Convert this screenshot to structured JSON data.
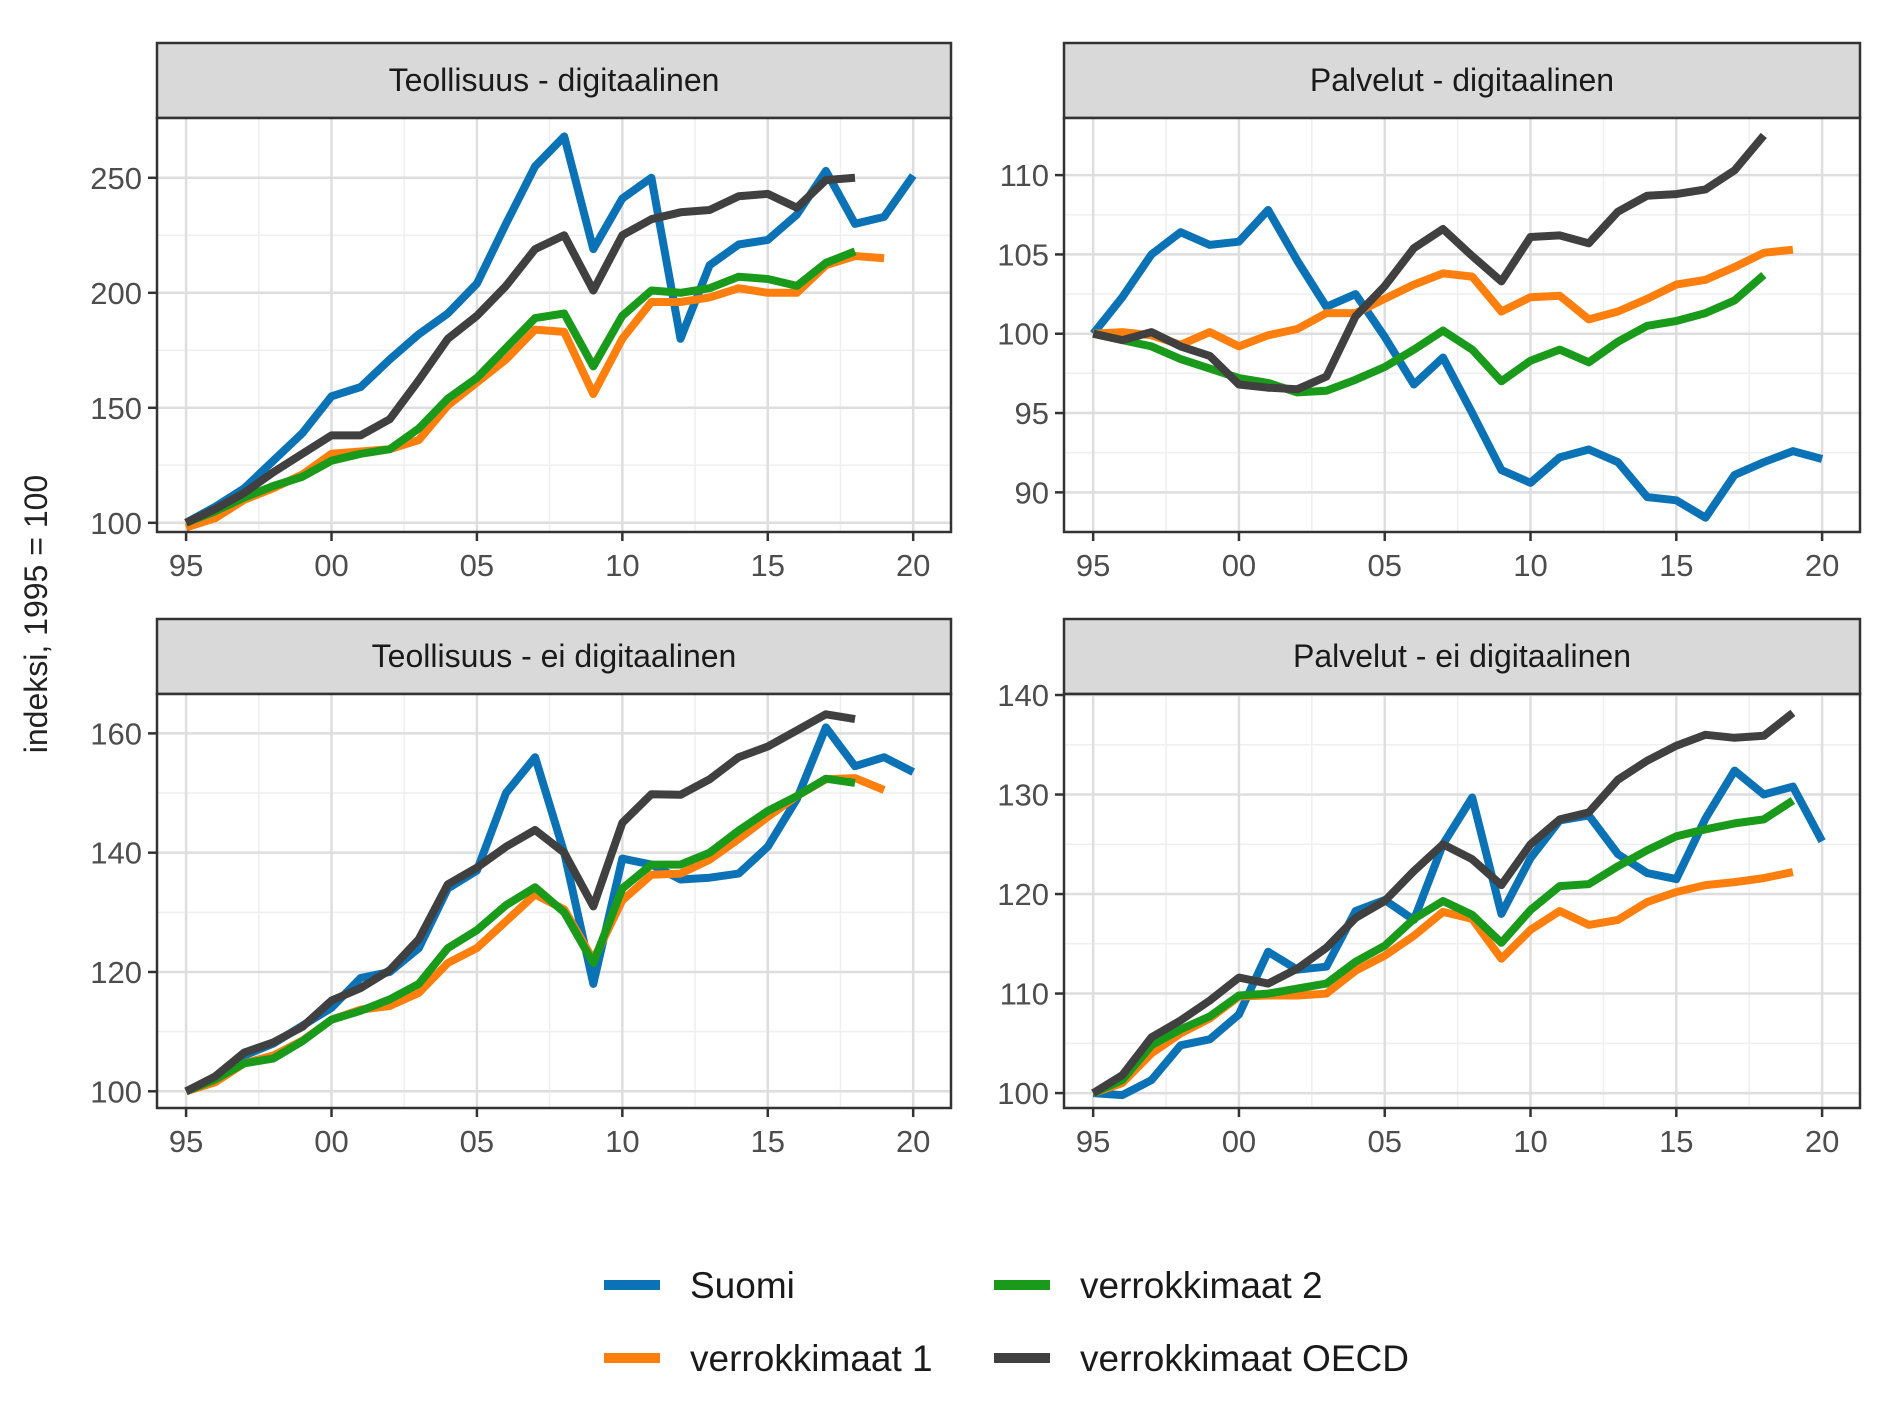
{
  "figure": {
    "ylabel": "indeksi, 1995 = 100",
    "legend": {
      "position": "bottom",
      "items": [
        {
          "label": "Suomi",
          "color": "#0b72b5"
        },
        {
          "label": "verrokkimaat 2",
          "color": "#1a9a1a"
        },
        {
          "label": "verrokkimaat 1",
          "color": "#ff7f0e"
        },
        {
          "label": "verrokkimaat OECD",
          "color": "#404040"
        }
      ]
    }
  },
  "chart_data": [
    {
      "type": "line",
      "title": "Teollisuus - digitaalinen",
      "x_ticks": [
        1995,
        2000,
        2005,
        2010,
        2015,
        2020
      ],
      "x_tick_labels": [
        "95",
        "00",
        "05",
        "10",
        "15",
        "20"
      ],
      "y_ticks": [
        100,
        150,
        200,
        250
      ],
      "y_tick_labels": [
        "100",
        "150",
        "200",
        "250"
      ],
      "xlim": [
        1994,
        2021.3
      ],
      "ylim": [
        96,
        276
      ],
      "grid": true,
      "series": [
        {
          "name": "Suomi",
          "color": "#0b72b5",
          "x": [
            1995,
            1996,
            1997,
            1998,
            1999,
            2000,
            2001,
            2002,
            2003,
            2004,
            2005,
            2006,
            2007,
            2008,
            2009,
            2010,
            2011,
            2012,
            2013,
            2014,
            2015,
            2016,
            2017,
            2018,
            2019,
            2020
          ],
          "values": [
            100,
            107,
            115,
            127,
            139,
            155,
            159,
            171,
            182,
            191,
            204,
            230,
            255,
            268,
            219,
            241,
            250,
            180,
            212,
            221,
            223,
            234,
            253,
            230,
            233,
            251
          ]
        },
        {
          "name": "verrokkimaat 1",
          "color": "#ff7f0e",
          "x": [
            1995,
            1996,
            1997,
            1998,
            1999,
            2000,
            2001,
            2002,
            2003,
            2004,
            2005,
            2006,
            2007,
            2008,
            2009,
            2010,
            2011,
            2012,
            2013,
            2014,
            2015,
            2016,
            2017,
            2018,
            2019
          ],
          "values": [
            98,
            102,
            110,
            115,
            121,
            130,
            131,
            132,
            136,
            151,
            161,
            171,
            184,
            183,
            156,
            180,
            196,
            196,
            198,
            202,
            200,
            200,
            212,
            216,
            215
          ]
        },
        {
          "name": "verrokkimaat 2",
          "color": "#1a9a1a",
          "x": [
            1995,
            1996,
            1997,
            1998,
            1999,
            2000,
            2001,
            2002,
            2003,
            2004,
            2005,
            2006,
            2007,
            2008,
            2009,
            2010,
            2011,
            2012,
            2013,
            2014,
            2015,
            2016,
            2017,
            2018
          ],
          "values": [
            100,
            105,
            111,
            116,
            120,
            127,
            130,
            132,
            141,
            154,
            163,
            176,
            189,
            191,
            168,
            190,
            201,
            200,
            202,
            207,
            206,
            203,
            213,
            218
          ]
        },
        {
          "name": "verrokkimaat OECD",
          "color": "#404040",
          "x": [
            1995,
            1996,
            1997,
            1998,
            1999,
            2000,
            2001,
            2002,
            2003,
            2004,
            2005,
            2006,
            2007,
            2008,
            2009,
            2010,
            2011,
            2012,
            2013,
            2014,
            2015,
            2016,
            2017,
            2018
          ],
          "values": [
            100,
            106,
            113,
            122,
            130,
            138,
            138,
            145,
            162,
            180,
            190,
            203,
            219,
            225,
            201,
            225,
            232,
            235,
            236,
            242,
            243,
            237,
            249,
            250
          ]
        }
      ]
    },
    {
      "type": "line",
      "title": "Palvelut - digitaalinen",
      "x_ticks": [
        1995,
        2000,
        2005,
        2010,
        2015,
        2020
      ],
      "x_tick_labels": [
        "95",
        "00",
        "05",
        "10",
        "15",
        "20"
      ],
      "y_ticks": [
        90,
        95,
        100,
        105,
        110
      ],
      "y_tick_labels": [
        "90",
        "95",
        "100",
        "105",
        "110"
      ],
      "xlim": [
        1994,
        2021.3
      ],
      "ylim": [
        87.5,
        113.6
      ],
      "grid": true,
      "series": [
        {
          "name": "Suomi",
          "color": "#0b72b5",
          "x": [
            1995,
            1996,
            1997,
            1998,
            1999,
            2000,
            2001,
            2002,
            2003,
            2004,
            2005,
            2006,
            2007,
            2008,
            2009,
            2010,
            2011,
            2012,
            2013,
            2014,
            2015,
            2016,
            2017,
            2018,
            2019,
            2020
          ],
          "values": [
            100,
            102.3,
            105,
            106.4,
            105.6,
            105.8,
            107.8,
            104.6,
            101.7,
            102.5,
            99.8,
            96.8,
            98.5,
            95,
            91.4,
            90.6,
            92.2,
            92.7,
            91.9,
            89.7,
            89.5,
            88.4,
            91.1,
            91.9,
            92.6,
            92.1
          ]
        },
        {
          "name": "verrokkimaat 1",
          "color": "#ff7f0e",
          "x": [
            1995,
            1996,
            1997,
            1998,
            1999,
            2000,
            2001,
            2002,
            2003,
            2004,
            2005,
            2006,
            2007,
            2008,
            2009,
            2010,
            2011,
            2012,
            2013,
            2014,
            2015,
            2016,
            2017,
            2018,
            2019
          ],
          "values": [
            100,
            100.1,
            99.9,
            99.3,
            100.1,
            99.2,
            99.9,
            100.3,
            101.3,
            101.3,
            102.2,
            103.1,
            103.8,
            103.6,
            101.4,
            102.3,
            102.4,
            100.9,
            101.4,
            102.2,
            103.1,
            103.4,
            104.2,
            105.1,
            105.3
          ]
        },
        {
          "name": "verrokkimaat 2",
          "color": "#1a9a1a",
          "x": [
            1995,
            1996,
            1997,
            1998,
            1999,
            2000,
            2001,
            2002,
            2003,
            2004,
            2005,
            2006,
            2007,
            2008,
            2009,
            2010,
            2011,
            2012,
            2013,
            2014,
            2015,
            2016,
            2017,
            2018
          ],
          "values": [
            100,
            99.6,
            99.2,
            98.4,
            97.8,
            97.2,
            96.9,
            96.3,
            96.4,
            97.1,
            97.9,
            99,
            100.2,
            99,
            97,
            98.3,
            99,
            98.2,
            99.5,
            100.5,
            100.8,
            101.3,
            102.1,
            103.7
          ]
        },
        {
          "name": "verrokkimaat OECD",
          "color": "#404040",
          "x": [
            1995,
            1996,
            1997,
            1998,
            1999,
            2000,
            2001,
            2002,
            2003,
            2004,
            2005,
            2006,
            2007,
            2008,
            2009,
            2010,
            2011,
            2012,
            2013,
            2014,
            2015,
            2016,
            2017,
            2018
          ],
          "values": [
            100,
            99.6,
            100.1,
            99.2,
            98.6,
            96.8,
            96.6,
            96.5,
            97.3,
            101.1,
            103,
            105.4,
            106.6,
            104.9,
            103.3,
            106.1,
            106.2,
            105.7,
            107.7,
            108.7,
            108.8,
            109.1,
            110.3,
            112.5
          ]
        }
      ]
    },
    {
      "type": "line",
      "title": "Teollisuus - ei digitaalinen",
      "x_ticks": [
        1995,
        2000,
        2005,
        2010,
        2015,
        2020
      ],
      "x_tick_labels": [
        "95",
        "00",
        "05",
        "10",
        "15",
        "20"
      ],
      "y_ticks": [
        100,
        120,
        140,
        160
      ],
      "y_tick_labels": [
        "100",
        "120",
        "140",
        "160"
      ],
      "xlim": [
        1994,
        2021.3
      ],
      "ylim": [
        97.2,
        166.6
      ],
      "grid": true,
      "series": [
        {
          "name": "Suomi",
          "color": "#0b72b5",
          "x": [
            1995,
            1996,
            1997,
            1998,
            1999,
            2000,
            2001,
            2002,
            2003,
            2004,
            2005,
            2006,
            2007,
            2008,
            2009,
            2010,
            2011,
            2012,
            2013,
            2014,
            2015,
            2016,
            2017,
            2018,
            2019,
            2020
          ],
          "values": [
            100,
            102,
            106,
            108,
            111,
            114,
            119,
            120,
            124,
            134,
            137,
            150,
            156,
            140,
            118,
            139,
            138,
            135.5,
            135.8,
            136.5,
            141,
            149,
            161,
            154.5,
            156,
            153.5
          ]
        },
        {
          "name": "verrokkimaat 1",
          "color": "#ff7f0e",
          "x": [
            1995,
            1996,
            1997,
            1998,
            1999,
            2000,
            2001,
            2002,
            2003,
            2004,
            2005,
            2006,
            2007,
            2008,
            2009,
            2010,
            2011,
            2012,
            2013,
            2014,
            2015,
            2016,
            2017,
            2018,
            2019
          ],
          "values": [
            100,
            101.5,
            104.7,
            106,
            108.5,
            112,
            113.7,
            114.3,
            116.5,
            121.5,
            124,
            128.5,
            133,
            130.5,
            122,
            132,
            136.3,
            136.5,
            138.8,
            142.3,
            146,
            149.5,
            152.3,
            152.5,
            150.5
          ]
        },
        {
          "name": "verrokkimaat 2",
          "color": "#1a9a1a",
          "x": [
            1995,
            1996,
            1997,
            1998,
            1999,
            2000,
            2001,
            2002,
            2003,
            2004,
            2005,
            2006,
            2007,
            2008,
            2009,
            2010,
            2011,
            2012,
            2013,
            2014,
            2015,
            2016,
            2017,
            2018
          ],
          "values": [
            100,
            102,
            104.7,
            105.5,
            108.4,
            112,
            113.5,
            115.4,
            118,
            124,
            127,
            131.2,
            134.2,
            130,
            121.5,
            134,
            138,
            138,
            140,
            143.7,
            147,
            149.5,
            152.4,
            151.7
          ]
        },
        {
          "name": "verrokkimaat OECD",
          "color": "#404040",
          "x": [
            1995,
            1996,
            1997,
            1998,
            1999,
            2000,
            2001,
            2002,
            2003,
            2004,
            2005,
            2006,
            2007,
            2008,
            2009,
            2010,
            2011,
            2012,
            2013,
            2014,
            2015,
            2016,
            2017,
            2018
          ],
          "values": [
            100,
            102.5,
            106.5,
            108.2,
            110.8,
            115.2,
            117.3,
            120.3,
            125.5,
            134.7,
            137.5,
            141,
            143.8,
            140,
            131,
            145,
            149.8,
            149.7,
            152.3,
            156,
            157.8,
            160.5,
            163.2,
            162.4
          ]
        }
      ]
    },
    {
      "type": "line",
      "title": "Palvelut - ei digitaalinen",
      "x_ticks": [
        1995,
        2000,
        2005,
        2010,
        2015,
        2020
      ],
      "x_tick_labels": [
        "95",
        "00",
        "05",
        "10",
        "15",
        "20"
      ],
      "y_ticks": [
        100,
        110,
        120,
        130,
        140
      ],
      "y_tick_labels": [
        "100",
        "110",
        "120",
        "130",
        "140"
      ],
      "xlim": [
        1994,
        2021.3
      ],
      "ylim": [
        98.5,
        140.1
      ],
      "grid": true,
      "series": [
        {
          "name": "Suomi",
          "color": "#0b72b5",
          "x": [
            1995,
            1996,
            1997,
            1998,
            1999,
            2000,
            2001,
            2002,
            2003,
            2004,
            2005,
            2006,
            2007,
            2008,
            2009,
            2010,
            2011,
            2012,
            2013,
            2014,
            2015,
            2016,
            2017,
            2018,
            2019,
            2020
          ],
          "values": [
            100,
            99.8,
            101.3,
            104.8,
            105.4,
            107.9,
            114.2,
            112.4,
            112.7,
            118.3,
            119.4,
            117.4,
            125,
            129.7,
            118,
            123.6,
            127.4,
            127.9,
            124,
            122.1,
            121.5,
            127.6,
            132.4,
            130,
            130.8,
            125.3
          ]
        },
        {
          "name": "verrokkimaat 1",
          "color": "#ff7f0e",
          "x": [
            1995,
            1996,
            1997,
            1998,
            1999,
            2000,
            2001,
            2002,
            2003,
            2004,
            2005,
            2006,
            2007,
            2008,
            2009,
            2010,
            2011,
            2012,
            2013,
            2014,
            2015,
            2016,
            2017,
            2018,
            2019
          ],
          "values": [
            100,
            101,
            104,
            106,
            107.5,
            109.7,
            109.8,
            109.8,
            110,
            112.3,
            113.8,
            115.8,
            118.2,
            117.5,
            113.5,
            116.4,
            118.3,
            116.9,
            117.4,
            119.2,
            120.2,
            120.9,
            121.2,
            121.6,
            122.2
          ]
        },
        {
          "name": "verrokkimaat 2",
          "color": "#1a9a1a",
          "x": [
            1995,
            1996,
            1997,
            1998,
            1999,
            2000,
            2001,
            2002,
            2003,
            2004,
            2005,
            2006,
            2007,
            2008,
            2009,
            2010,
            2011,
            2012,
            2013,
            2014,
            2015,
            2016,
            2017,
            2018,
            2019
          ],
          "values": [
            100,
            101.3,
            104.8,
            106.4,
            107.7,
            109.8,
            110,
            110.5,
            111,
            113.2,
            114.8,
            117.5,
            119.3,
            117.9,
            115.1,
            118.4,
            120.8,
            121,
            122.8,
            124.4,
            125.8,
            126.5,
            127.1,
            127.5,
            129.4
          ]
        },
        {
          "name": "verrokkimaat OECD",
          "color": "#404040",
          "x": [
            1995,
            1996,
            1997,
            1998,
            1999,
            2000,
            2001,
            2002,
            2003,
            2004,
            2005,
            2006,
            2007,
            2008,
            2009,
            2010,
            2011,
            2012,
            2013,
            2014,
            2015,
            2016,
            2017,
            2018,
            2019
          ],
          "values": [
            100,
            101.8,
            105.6,
            107.3,
            109.3,
            111.6,
            111,
            112.5,
            114.6,
            117.6,
            119.3,
            122.3,
            125,
            123.5,
            120.9,
            125,
            127.5,
            128.2,
            131.5,
            133.4,
            134.9,
            136,
            135.7,
            135.9,
            138.2
          ]
        }
      ]
    }
  ]
}
